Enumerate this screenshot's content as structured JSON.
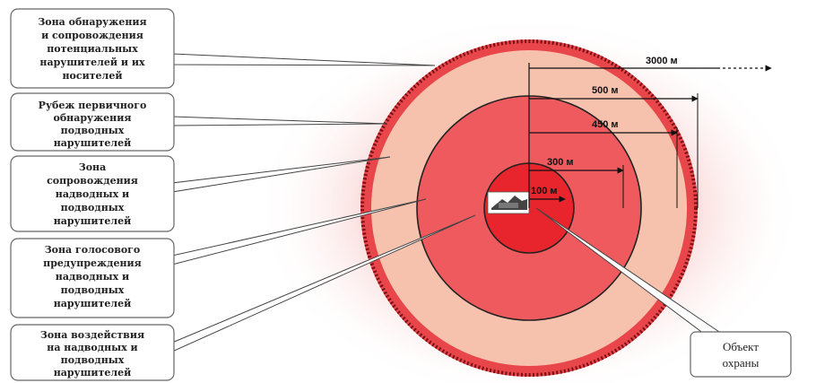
{
  "labels": {
    "zone_detection": [
      "Зона обнаружения",
      "и сопровождения",
      "потенциальных",
      "нарушителей и их",
      "носителей"
    ],
    "line_primary": [
      "Рубеж первичного",
      "обнаружения",
      "подводных",
      "нарушителей"
    ],
    "zone_tracking": [
      "Зона",
      "сопровождения",
      "надводных и",
      "подводных",
      "нарушителей"
    ],
    "zone_voice": [
      "Зона голосового",
      "предупреждения",
      "надводных и",
      "подводных",
      "нарушителей"
    ],
    "zone_impact": [
      "Зона воздействия",
      "на надводных и",
      "подводных",
      "нарушителей"
    ],
    "object": [
      "Объект",
      "охраны"
    ]
  },
  "distances": {
    "d3000": "3000 м",
    "d500": "500 м",
    "d450": "450 м",
    "d300": "300 м",
    "d100": "100 м"
  },
  "colors": {
    "outer_glow": "#f9d0d0",
    "band_500": "#e8464a",
    "zone_450": "#f7c2ad",
    "zone_300": "#ee5a5e",
    "zone_100": "#e8242c"
  }
}
